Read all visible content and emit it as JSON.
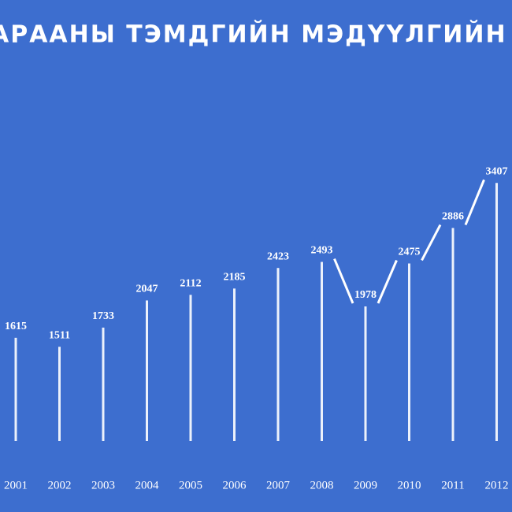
{
  "chart_data": {
    "type": "bar",
    "title": "АРААНЫ ТЭМДГИЙН МЭДҮҮЛГИЙН ТО",
    "categories": [
      "2001",
      "2002",
      "2003",
      "2004",
      "2005",
      "2006",
      "2007",
      "2008",
      "2009",
      "2010",
      "2011",
      "2012"
    ],
    "values": [
      1615,
      1511,
      1733,
      2047,
      2112,
      2185,
      2423,
      2493,
      1978,
      2475,
      2886,
      3407
    ],
    "color": "#ffffff",
    "background": "#3d6ecf"
  }
}
